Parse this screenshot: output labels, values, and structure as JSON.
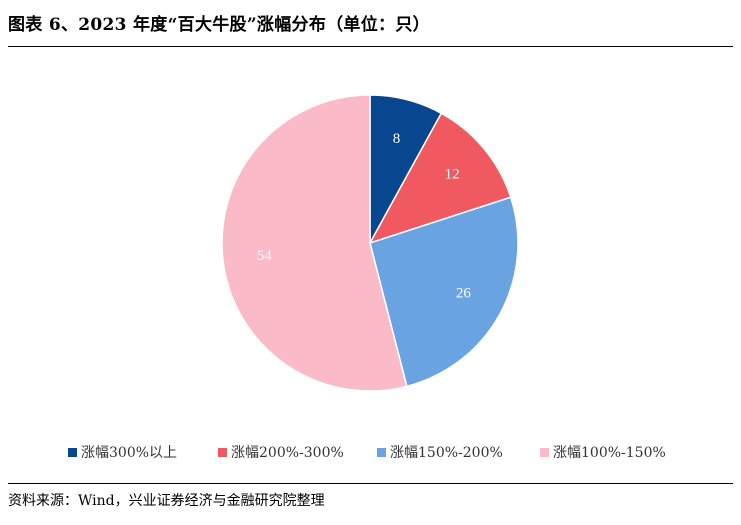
{
  "title": "图表 6、2023 年度“百大牛股”涨幅分布（单位：只）",
  "source": "资料来源：Wind，兴业证券经济与金融研究院整理",
  "chart_data": {
    "type": "pie",
    "title": "图表 6、2023 年度“百大牛股”涨幅分布（单位：只）",
    "unit": "只",
    "legend_position": "bottom",
    "slices": [
      {
        "name": "涨幅300%以上",
        "value": 8,
        "color": "#08468f"
      },
      {
        "name": "涨幅200%-300%",
        "value": 12,
        "color": "#f0595f"
      },
      {
        "name": "涨幅150%-200%",
        "value": 26,
        "color": "#6aa3e2"
      },
      {
        "name": "涨幅100%-150%",
        "value": 54,
        "color": "#fbbac8"
      }
    ]
  }
}
